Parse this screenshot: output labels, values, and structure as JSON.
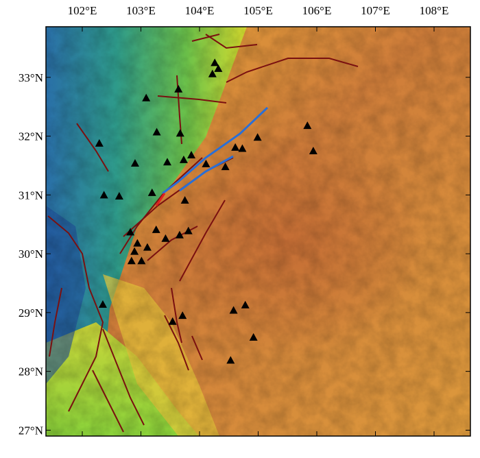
{
  "map": {
    "lon_range": [
      101.38,
      108.62
    ],
    "lat_range": [
      26.9,
      33.86
    ],
    "lon_ticks": [
      {
        "value": 102,
        "label": "102°E"
      },
      {
        "value": 103,
        "label": "103°E"
      },
      {
        "value": 104,
        "label": "104°E"
      },
      {
        "value": 105,
        "label": "105°E"
      },
      {
        "value": 106,
        "label": "106°E"
      },
      {
        "value": 107,
        "label": "107°E"
      },
      {
        "value": 108,
        "label": "108°E"
      }
    ],
    "lat_ticks": [
      {
        "value": 33,
        "label": "33°N"
      },
      {
        "value": 32,
        "label": "32°N"
      },
      {
        "value": 31,
        "label": "31°N"
      },
      {
        "value": 30,
        "label": "30°N"
      },
      {
        "value": 29,
        "label": "29°N"
      },
      {
        "value": 28,
        "label": "28°N"
      },
      {
        "value": 27,
        "label": "27°N"
      }
    ],
    "stations": [
      {
        "lon": 104.26,
        "lat": 33.25
      },
      {
        "lon": 104.32,
        "lat": 33.15
      },
      {
        "lon": 104.22,
        "lat": 33.06
      },
      {
        "lon": 103.64,
        "lat": 32.8
      },
      {
        "lon": 103.09,
        "lat": 32.65
      },
      {
        "lon": 103.27,
        "lat": 32.07
      },
      {
        "lon": 103.67,
        "lat": 32.05
      },
      {
        "lon": 102.29,
        "lat": 31.88
      },
      {
        "lon": 102.9,
        "lat": 31.54
      },
      {
        "lon": 103.45,
        "lat": 31.56
      },
      {
        "lon": 103.73,
        "lat": 31.6
      },
      {
        "lon": 103.86,
        "lat": 31.68
      },
      {
        "lon": 104.11,
        "lat": 31.53
      },
      {
        "lon": 104.61,
        "lat": 31.81
      },
      {
        "lon": 104.73,
        "lat": 31.79
      },
      {
        "lon": 104.99,
        "lat": 31.98
      },
      {
        "lon": 105.84,
        "lat": 32.18
      },
      {
        "lon": 105.94,
        "lat": 31.75
      },
      {
        "lon": 104.44,
        "lat": 31.48
      },
      {
        "lon": 103.19,
        "lat": 31.04
      },
      {
        "lon": 102.37,
        "lat": 31.0
      },
      {
        "lon": 102.63,
        "lat": 30.98
      },
      {
        "lon": 103.75,
        "lat": 30.91
      },
      {
        "lon": 102.82,
        "lat": 30.37
      },
      {
        "lon": 103.26,
        "lat": 30.41
      },
      {
        "lon": 103.42,
        "lat": 30.26
      },
      {
        "lon": 103.66,
        "lat": 30.32
      },
      {
        "lon": 103.81,
        "lat": 30.39
      },
      {
        "lon": 102.94,
        "lat": 30.18
      },
      {
        "lon": 103.11,
        "lat": 30.11
      },
      {
        "lon": 102.89,
        "lat": 30.04
      },
      {
        "lon": 102.84,
        "lat": 29.88
      },
      {
        "lon": 103.01,
        "lat": 29.88
      },
      {
        "lon": 102.35,
        "lat": 29.14
      },
      {
        "lon": 103.71,
        "lat": 28.95
      },
      {
        "lon": 103.54,
        "lat": 28.85
      },
      {
        "lon": 104.58,
        "lat": 29.04
      },
      {
        "lon": 104.78,
        "lat": 29.13
      },
      {
        "lon": 104.92,
        "lat": 28.58
      },
      {
        "lon": 104.53,
        "lat": 28.19
      }
    ]
  }
}
